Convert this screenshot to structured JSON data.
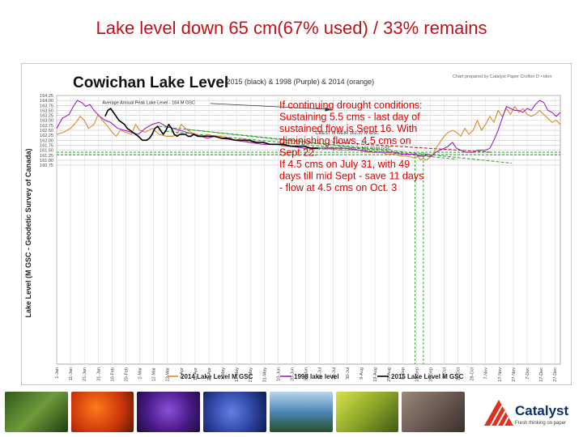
{
  "slide": {
    "title": "Lake level down 65 cm(67% used) / 33% remains"
  },
  "logo": {
    "name": "Catalyst",
    "tagline": "Fresh thinking on paper"
  },
  "colors": {
    "title": "#c0101a",
    "orange_2014": "#d98b2b",
    "purple_1998": "#a020c0",
    "black_2015": "#000000",
    "annotation_red": "#e00000",
    "trend_green": "#2e9e2e",
    "trend_red": "#b01010"
  },
  "chart_data": {
    "type": "line",
    "title": "Cowichan Lake Level",
    "subtitle": "- 2015 (black) & 1998 (Purple) & 2014 (orange)",
    "credit": "Chart prepared by Catalyst Paper Crofton D • iden",
    "ylabel": "Lake Level (M GSC - Geodetic Survey of Canada)",
    "ylim": [
      150.75,
      164.25
    ],
    "y_ticks": [
      "164.25",
      "164.00",
      "163.75",
      "163.50",
      "163.25",
      "163.00",
      "162.75",
      "162.50",
      "162.25",
      "162.00",
      "161.75",
      "161.50",
      "161.25",
      "161.00",
      "160.75"
    ],
    "x_ticks": [
      "1-Jan",
      "11-Jan",
      "21-Jan",
      "31-Jan",
      "10-Feb",
      "20-Feb",
      "2-Mar",
      "12-Mar",
      "22-Mar",
      "1-Apr",
      "11-Apr",
      "21-Apr",
      "1-May",
      "11-May",
      "21-May",
      "31-May",
      "10-Jun",
      "20-Jun",
      "30-Jun",
      "10-Jul",
      "20-Jul",
      "30-Jul",
      "9-Aug",
      "19-Aug",
      "29-Aug",
      "8-Sep",
      "18-Sep",
      "28-Sep",
      "8-Oct",
      "18-Oct",
      "28-Oct",
      "7-Nov",
      "17-Nov",
      "27-Nov",
      "7-Dec",
      "17-Dec",
      "27-Dec"
    ],
    "x_unit": "day of year",
    "grid": true,
    "legend_position": "bottom",
    "series": [
      {
        "name": "2014 Lake Level M GSC",
        "color": "#d98b2b",
        "x": [
          1,
          6,
          11,
          15,
          18,
          21,
          24,
          28,
          31,
          34,
          38,
          41,
          44,
          47,
          51,
          55,
          58,
          61,
          65,
          70,
          75,
          80,
          85,
          88,
          91,
          94,
          98,
          102,
          106,
          110,
          115,
          120,
          125,
          130,
          135,
          140,
          145,
          150,
          155,
          160,
          165,
          170,
          175,
          180,
          185,
          190,
          195,
          200,
          205,
          210,
          215,
          220,
          225,
          230,
          235,
          240,
          245,
          250,
          255,
          260,
          262,
          264,
          266,
          268,
          270,
          272,
          275,
          278,
          281,
          284,
          287,
          290,
          293,
          296,
          299,
          302,
          305,
          308,
          311,
          314,
          317,
          320,
          323,
          326,
          329,
          332,
          335,
          338,
          341,
          344,
          347,
          350,
          353,
          356,
          359,
          362,
          365
        ],
        "y": [
          162.3,
          162.4,
          162.6,
          162.9,
          163.2,
          163.0,
          162.6,
          162.8,
          163.3,
          163.0,
          162.7,
          162.4,
          162.2,
          162.5,
          162.4,
          162.3,
          162.8,
          162.5,
          162.4,
          162.6,
          162.3,
          162.2,
          162.2,
          162.3,
          162.8,
          162.6,
          162.4,
          162.3,
          162.2,
          162.3,
          162.2,
          162.2,
          162.1,
          162.0,
          162.1,
          161.9,
          161.9,
          161.9,
          161.8,
          161.8,
          161.7,
          161.7,
          161.7,
          161.7,
          161.6,
          161.6,
          161.6,
          161.6,
          161.5,
          161.5,
          161.5,
          161.5,
          161.4,
          161.4,
          161.4,
          161.3,
          161.3,
          161.2,
          161.2,
          161.1,
          161.2,
          161.0,
          161.1,
          161.0,
          161.1,
          161.2,
          161.6,
          161.9,
          162.2,
          162.4,
          162.5,
          162.4,
          162.2,
          162.6,
          162.3,
          162.5,
          163.0,
          162.5,
          162.8,
          163.2,
          162.9,
          163.5,
          163.2,
          163.6,
          163.3,
          163.7,
          163.4,
          163.6,
          163.3,
          163.2,
          163.3,
          163.5,
          163.3,
          163.1,
          162.9,
          163.0,
          162.8
        ]
      },
      {
        "name": "1998 lake level",
        "color": "#a020c0",
        "x": [
          1,
          5,
          10,
          13,
          16,
          19,
          22,
          25,
          28,
          32,
          36,
          40,
          45,
          50,
          55,
          60,
          65,
          70,
          75,
          80,
          85,
          90,
          95,
          100,
          105,
          110,
          115,
          120,
          130,
          140,
          150,
          160,
          170,
          180,
          190,
          200,
          210,
          220,
          230,
          240,
          245,
          250,
          255,
          260,
          263,
          266,
          269,
          272,
          275,
          278,
          281,
          284,
          287,
          290,
          293,
          296,
          299,
          302,
          305,
          308,
          311,
          314,
          317,
          320,
          323,
          326,
          329,
          332,
          335,
          338,
          341,
          344,
          347,
          350,
          353,
          356,
          359,
          362,
          365
        ],
        "y": [
          162.6,
          163.1,
          163.3,
          163.7,
          164.0,
          163.9,
          163.7,
          163.8,
          163.5,
          163.2,
          163.0,
          162.9,
          162.6,
          162.5,
          162.4,
          162.3,
          162.6,
          162.8,
          162.9,
          162.7,
          162.6,
          162.5,
          162.4,
          162.3,
          162.2,
          162.1,
          162.2,
          162.1,
          162.0,
          161.9,
          161.8,
          161.8,
          161.7,
          161.6,
          161.6,
          161.6,
          161.6,
          161.5,
          161.4,
          161.4,
          161.4,
          161.3,
          161.3,
          161.3,
          161.2,
          161.2,
          161.3,
          161.2,
          161.4,
          161.5,
          161.6,
          161.7,
          161.9,
          161.6,
          161.5,
          161.4,
          161.4,
          161.4,
          161.5,
          161.5,
          161.5,
          161.6,
          162.0,
          162.5,
          163.1,
          163.7,
          163.6,
          163.5,
          163.5,
          163.4,
          163.6,
          163.5,
          163.8,
          164.0,
          163.9,
          163.5,
          163.4,
          163.2,
          163.4
        ]
      },
      {
        "name": "2015 Lake Level M GSC",
        "color": "#000000",
        "x": [
          36,
          38,
          40,
          42,
          44,
          46,
          48,
          50,
          52,
          54,
          56,
          58,
          60,
          63,
          66,
          68,
          70,
          72,
          74,
          76,
          78,
          80,
          82,
          84,
          86,
          88,
          90,
          92,
          94,
          96,
          98,
          100,
          103,
          106,
          110,
          115,
          120,
          125,
          130,
          135,
          140,
          145,
          150,
          155,
          160,
          165,
          170,
          175,
          180,
          185,
          190
        ],
        "y": [
          163.2,
          163.5,
          163.6,
          163.4,
          163.2,
          163.0,
          162.9,
          162.8,
          162.6,
          162.5,
          162.4,
          162.3,
          162.2,
          162.0,
          162.0,
          162.1,
          162.3,
          162.6,
          162.7,
          162.5,
          162.3,
          162.5,
          162.8,
          162.6,
          162.3,
          162.2,
          162.3,
          162.3,
          162.3,
          162.2,
          162.2,
          162.3,
          162.2,
          162.2,
          162.2,
          162.2,
          162.1,
          162.1,
          162.0,
          162.0,
          162.0,
          161.9,
          161.9,
          161.8,
          161.8,
          161.8,
          161.7,
          161.7,
          161.7,
          161.6,
          161.6
        ]
      }
    ],
    "reference_lines": {
      "peak_label": "Average Annual Peak Lake Level - 164 M GSC",
      "weir_label": "CREST of WEIR 162.37 M GSC",
      "zero_storage_label": "Zero Storage @ 7 cms = 161.40 M GSC",
      "zero_storage_value": 161.4,
      "weir_value": 162.37
    },
    "trend_lines": [
      {
        "color": "#2e9e2e",
        "x": [
          75,
          272
        ],
        "y": [
          162.7,
          161.2
        ]
      },
      {
        "color": "#2e9e2e",
        "x": [
          80,
          290
        ],
        "y": [
          162.45,
          161.05
        ]
      },
      {
        "color": "#2e9e2e",
        "x": [
          95,
          330
        ],
        "y": [
          162.55,
          160.85
        ]
      },
      {
        "color": "#b01010",
        "x": [
          200,
          315
        ],
        "y": [
          161.9,
          161.4
        ]
      }
    ],
    "vertical_markers": [
      {
        "color": "#2e9e2e",
        "x": 260
      },
      {
        "color": "#2e9e2e",
        "x": 266
      }
    ],
    "annotation": [
      "If continuing drought conditions:",
      "Sustaining 5.5 cms - last day of",
      "sustained flow is Sept 16. With",
      "diminishing flows, 4.5 cms on",
      "Sept 22.",
      "If 4.5 cms on July 31, with 49",
      "days till mid Sept - save 11 days",
      "- flow at 4.5 cms on Oct. 3"
    ]
  }
}
